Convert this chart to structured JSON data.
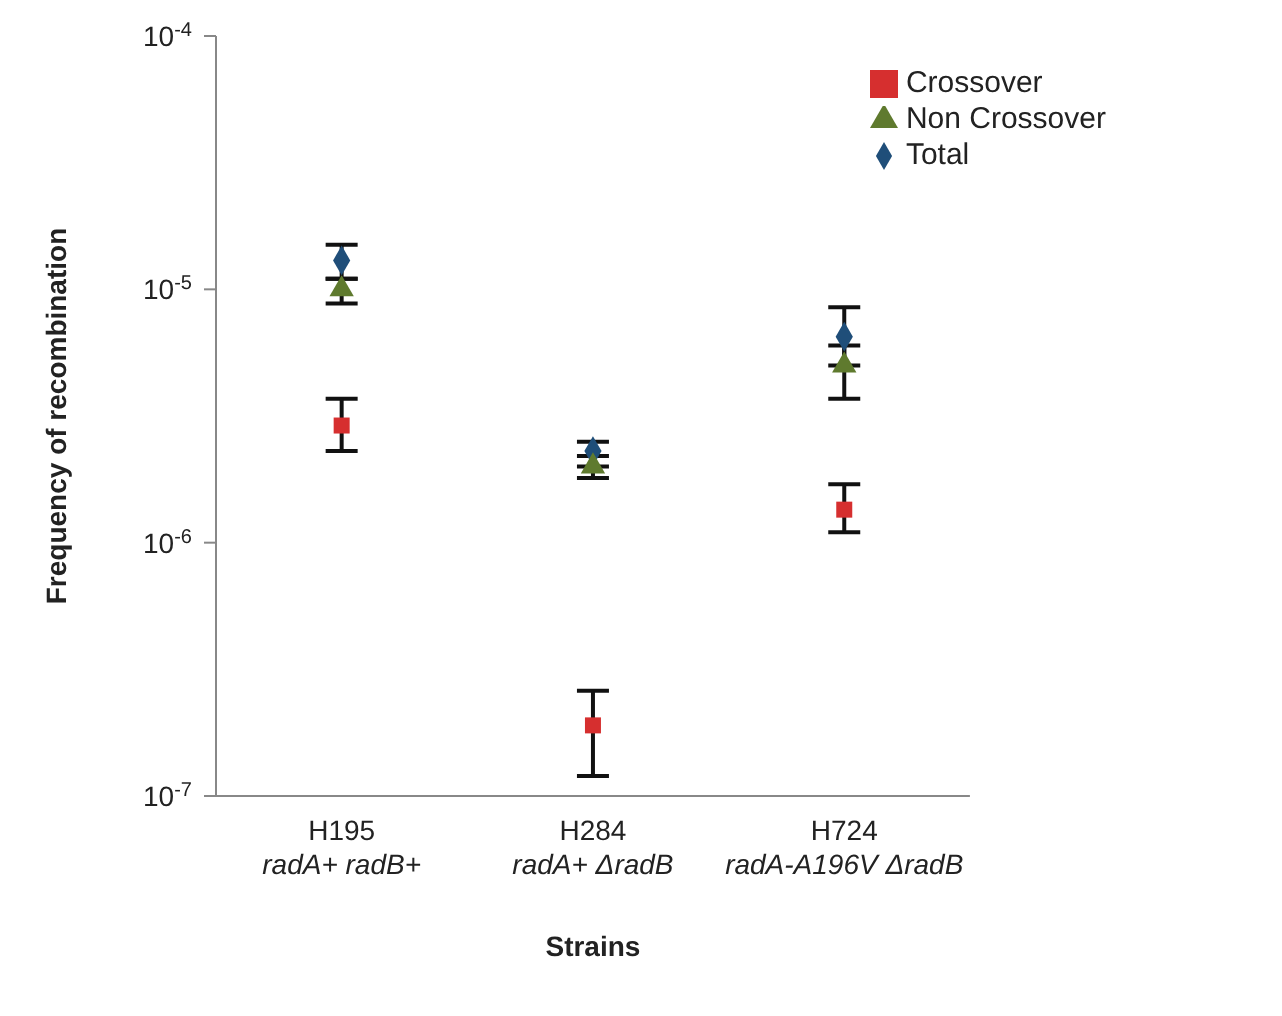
{
  "chart_data": {
    "type": "scatter",
    "xlabel": "Strains",
    "ylabel": "Frequency of recombination",
    "categories": [
      "H195\nradA+ radB+",
      "H284\nradA+ ΔradB",
      "H724\nradA-A196V ΔradB"
    ],
    "log": "y",
    "ylim": [
      1e-07,
      0.0001
    ],
    "yticks": [
      {
        "value": 1e-07,
        "label": "10$^{-7}$"
      },
      {
        "value": 1e-06,
        "label": "10$^{-6}$"
      },
      {
        "value": 1e-05,
        "label": "10$^{-5}$"
      },
      {
        "value": 0.0001,
        "label": "10$^{-4}$"
      }
    ],
    "grid": false,
    "legend": "top right",
    "series": [
      {
        "name": "Total",
        "color": "#1f4e79",
        "marker": "diamond",
        "values": [
          1.3e-05,
          2.3e-06,
          6.5e-06
        ],
        "errors": [
          [
            1.1e-05,
            1.5e-05
          ],
          [
            2e-06,
            2.5e-06
          ],
          [
            5e-06,
            8.5e-06
          ]
        ]
      },
      {
        "name": "Non Crossover",
        "color": "#5f7a2e",
        "marker": "triangle",
        "values": [
          1e-05,
          2e-06,
          5e-06
        ],
        "errors": [
          [
            8.8e-06,
            1.1e-05
          ],
          [
            1.8e-06,
            2.2e-06
          ],
          [
            3.7e-06,
            6e-06
          ]
        ]
      },
      {
        "name": "Crossover",
        "color": "#d62f2f",
        "marker": "square",
        "values": [
          2.9e-06,
          1.9e-07,
          1.35e-06
        ],
        "errors": [
          [
            2.3e-06,
            3.7e-06
          ],
          [
            1.2e-07,
            2.6e-07
          ],
          [
            1.1e-06,
            1.7e-06
          ]
        ]
      }
    ]
  }
}
